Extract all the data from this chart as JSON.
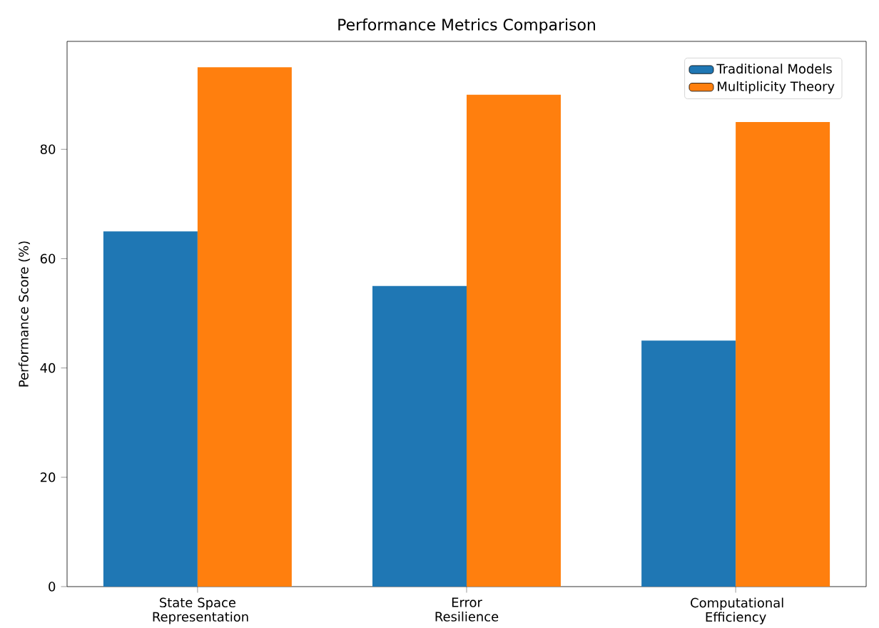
{
  "chart_data": {
    "type": "bar",
    "title": "Performance Metrics Comparison",
    "ylabel": "Performance Score (%)",
    "categories": [
      "State Space Representation",
      "Error Resilience",
      "Computational Efficiency"
    ],
    "series": [
      {
        "name": "Traditional Models",
        "color": "#1f77b4",
        "values": [
          65,
          55,
          45
        ]
      },
      {
        "name": "Multiplicity Theory",
        "color": "#ff7f0e",
        "values": [
          95,
          90,
          85
        ]
      }
    ],
    "ylim": [
      0,
      99.75
    ],
    "yticks": [
      0,
      20,
      40,
      60,
      80
    ],
    "legend": "top right"
  }
}
